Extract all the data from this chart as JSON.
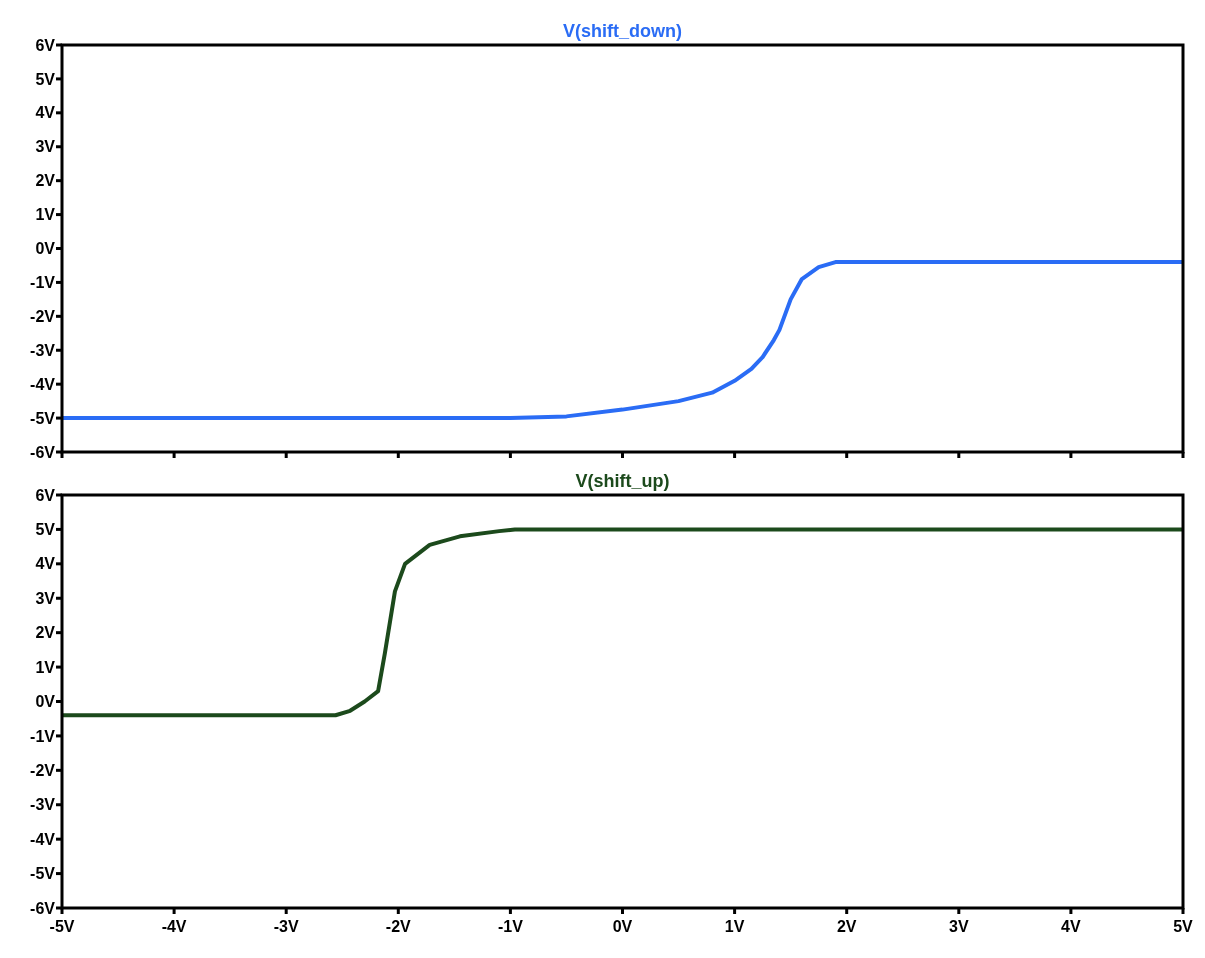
{
  "chart_data": [
    {
      "type": "line",
      "title": "V(shift_down)",
      "xlim": [
        -5,
        5
      ],
      "xticks": [
        {
          "value": -5,
          "label": null
        },
        {
          "value": -4,
          "label": null
        },
        {
          "value": -3,
          "label": null
        },
        {
          "value": -2,
          "label": null
        },
        {
          "value": -1,
          "label": null
        },
        {
          "value": 0,
          "label": null
        },
        {
          "value": 1,
          "label": null
        },
        {
          "value": 2,
          "label": null
        },
        {
          "value": 3,
          "label": null
        },
        {
          "value": 4,
          "label": null
        },
        {
          "value": 5,
          "label": null
        }
      ],
      "ylim": [
        -6,
        6
      ],
      "yticks": [
        {
          "value": -6,
          "label": "-6V"
        },
        {
          "value": -5,
          "label": "-5V"
        },
        {
          "value": -4,
          "label": "-4V"
        },
        {
          "value": -3,
          "label": "-3V"
        },
        {
          "value": -2,
          "label": "-2V"
        },
        {
          "value": -1,
          "label": "-1V"
        },
        {
          "value": 0,
          "label": "0V"
        },
        {
          "value": 1,
          "label": "1V"
        },
        {
          "value": 2,
          "label": "2V"
        },
        {
          "value": 3,
          "label": "3V"
        },
        {
          "value": 4,
          "label": "4V"
        },
        {
          "value": 5,
          "label": "5V"
        },
        {
          "value": 6,
          "label": "6V"
        }
      ],
      "tick_labels": "y",
      "series": [
        {
          "color": "#2a6cf5",
          "x": [
            -5,
            -1,
            -0.5,
            0,
            0.5,
            0.8,
            1,
            1.15,
            1.25,
            1.35,
            1.4,
            1.5,
            1.6,
            1.75,
            1.9,
            3,
            5
          ],
          "values": [
            -5,
            -5,
            -4.95,
            -4.75,
            -4.5,
            -4.25,
            -3.9,
            -3.55,
            -3.2,
            -2.7,
            -2.4,
            -1.5,
            -0.9,
            -0.55,
            -0.4,
            -0.4,
            -0.4
          ]
        }
      ]
    },
    {
      "type": "line",
      "title": "V(shift_up)",
      "xlim": [
        -5,
        5
      ],
      "xticks": [
        {
          "value": -5,
          "label": "-5V"
        },
        {
          "value": -4,
          "label": "-4V"
        },
        {
          "value": -3,
          "label": "-3V"
        },
        {
          "value": -2,
          "label": "-2V"
        },
        {
          "value": -1,
          "label": "-1V"
        },
        {
          "value": 0,
          "label": "0V"
        },
        {
          "value": 1,
          "label": "1V"
        },
        {
          "value": 2,
          "label": "2V"
        },
        {
          "value": 3,
          "label": "3V"
        },
        {
          "value": 4,
          "label": "4V"
        },
        {
          "value": 5,
          "label": "5V"
        }
      ],
      "ylim": [
        -6,
        6
      ],
      "yticks": [
        {
          "value": -6,
          "label": "-6V"
        },
        {
          "value": -5,
          "label": "-5V"
        },
        {
          "value": -4,
          "label": "-4V"
        },
        {
          "value": -3,
          "label": "-3V"
        },
        {
          "value": -2,
          "label": "-2V"
        },
        {
          "value": -1,
          "label": "-1V"
        },
        {
          "value": 0,
          "label": "0V"
        },
        {
          "value": 1,
          "label": "1V"
        },
        {
          "value": 2,
          "label": "2V"
        },
        {
          "value": 3,
          "label": "3V"
        },
        {
          "value": 4,
          "label": "4V"
        },
        {
          "value": 5,
          "label": "5V"
        },
        {
          "value": 6,
          "label": "6V"
        }
      ],
      "series": [
        {
          "color": "#1c4a1c",
          "x": [
            -5,
            -2.56,
            -2.43,
            -2.3,
            -2.18,
            -2.12,
            -2.03,
            -1.94,
            -1.72,
            -1.45,
            -1.1,
            -0.96,
            0,
            5
          ],
          "values": [
            -0.4,
            -0.4,
            -0.27,
            0,
            0.3,
            1.4,
            3.2,
            4,
            4.55,
            4.8,
            4.95,
            5,
            5,
            5
          ]
        }
      ]
    }
  ]
}
